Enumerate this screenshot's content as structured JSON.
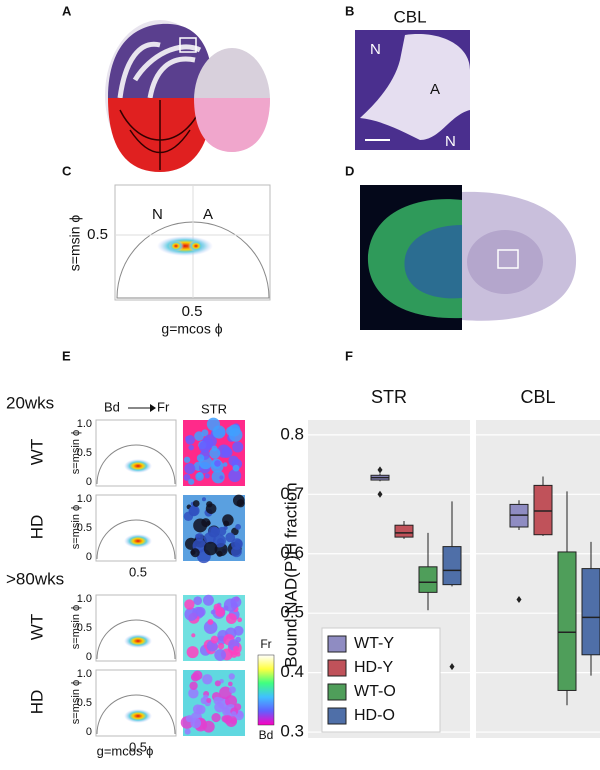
{
  "panels": {
    "A": {
      "label": "A"
    },
    "B": {
      "label": "B",
      "title": "CBL",
      "regions": [
        "N",
        "A",
        "N"
      ]
    },
    "C": {
      "label": "C",
      "regions": [
        "N",
        "A"
      ],
      "y_tick": "0.5",
      "x_tick": "0.5",
      "y_label": "s=msin ϕ",
      "x_label": "g=mcos ϕ"
    },
    "D": {
      "label": "D"
    },
    "E": {
      "label": "E",
      "groups": [
        "20wks",
        ">80wks"
      ],
      "from": "Bd",
      "to": "Fr",
      "region": "STR",
      "rows": [
        "WT",
        "HD",
        "WT",
        "HD"
      ],
      "y_ticks": [
        "1.0",
        "0.5",
        "0"
      ],
      "y_label": "s=msin ϕ",
      "x_tick": "0.5",
      "x_label": "g=mcos ϕ",
      "colorbar": [
        "Fr",
        "Bd"
      ]
    },
    "F": {
      "label": "F"
    }
  },
  "chart_data": {
    "type": "box",
    "y_label": "Bound NAD(P)H fraction",
    "facets": [
      "STR",
      "CBL"
    ],
    "ylim": [
      0.29,
      0.825
    ],
    "yticks": [
      0.3,
      0.4,
      0.5,
      0.6,
      0.7,
      0.8
    ],
    "grid": true,
    "legend": "lower left",
    "series": [
      {
        "name": "WT-Y",
        "color": "#8f8cc2",
        "boxes": [
          {
            "min": 0.722,
            "q1": 0.724,
            "median": 0.728,
            "q3": 0.732,
            "max": 0.735,
            "outliers": [
              0.741,
              0.7
            ]
          },
          {
            "min": 0.64,
            "q1": 0.645,
            "median": 0.665,
            "q3": 0.683,
            "max": 0.69,
            "outliers": [
              0.523
            ]
          }
        ]
      },
      {
        "name": "HD-Y",
        "color": "#c0525a",
        "boxes": [
          {
            "min": 0.625,
            "q1": 0.628,
            "median": 0.635,
            "q3": 0.648,
            "max": 0.655,
            "outliers": []
          },
          {
            "min": 0.63,
            "q1": 0.632,
            "median": 0.672,
            "q3": 0.715,
            "max": 0.73,
            "outliers": []
          }
        ]
      },
      {
        "name": "WT-O",
        "color": "#4f9e5a",
        "boxes": [
          {
            "min": 0.505,
            "q1": 0.535,
            "median": 0.552,
            "q3": 0.578,
            "max": 0.635,
            "outliers": []
          },
          {
            "min": 0.345,
            "q1": 0.37,
            "median": 0.468,
            "q3": 0.603,
            "max": 0.705,
            "outliers": []
          }
        ]
      },
      {
        "name": "HD-O",
        "color": "#4f6fa8",
        "boxes": [
          {
            "min": 0.545,
            "q1": 0.548,
            "median": 0.572,
            "q3": 0.612,
            "max": 0.688,
            "outliers": [
              0.41
            ]
          },
          {
            "min": 0.395,
            "q1": 0.43,
            "median": 0.493,
            "q3": 0.575,
            "max": 0.62,
            "outliers": []
          }
        ]
      }
    ]
  }
}
